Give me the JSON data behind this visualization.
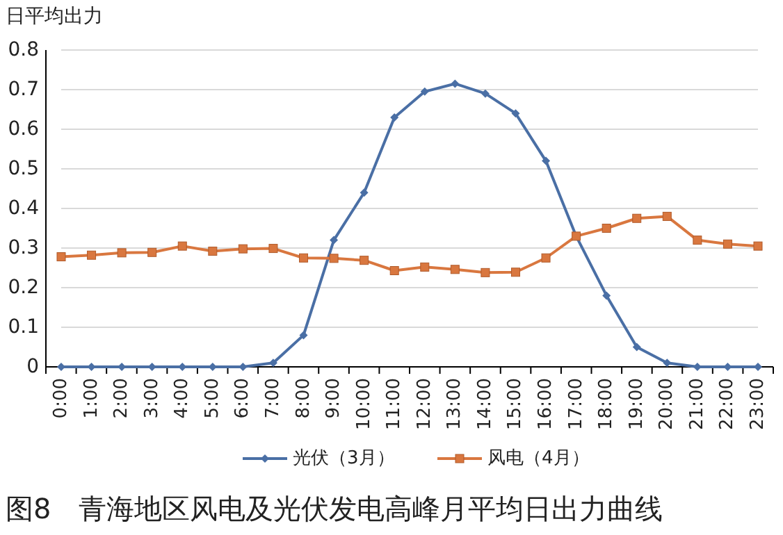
{
  "chart_data": {
    "type": "line",
    "title": "图8　青海地区风电及光伏发电高峰月平均日出力曲线",
    "ylabel": "日平均出力",
    "categories": [
      "0:00",
      "1:00",
      "2:00",
      "3:00",
      "4:00",
      "5:00",
      "6:00",
      "7:00",
      "8:00",
      "9:00",
      "10:00",
      "11:00",
      "12:00",
      "13:00",
      "14:00",
      "15:00",
      "16:00",
      "17:00",
      "18:00",
      "19:00",
      "20:00",
      "21:00",
      "22:00",
      "23:00"
    ],
    "series": [
      {
        "name": "光伏（3月）",
        "color": "#4a6fa5",
        "marker": "diamond",
        "values": [
          0,
          0,
          0,
          0,
          0,
          0,
          0,
          0.01,
          0.08,
          0.32,
          0.44,
          0.63,
          0.695,
          0.715,
          0.69,
          0.64,
          0.52,
          0.33,
          0.18,
          0.05,
          0.01,
          0,
          0,
          0
        ]
      },
      {
        "name": "风电（4月）",
        "color": "#d9773f",
        "marker": "square",
        "values": [
          0.278,
          0.282,
          0.288,
          0.289,
          0.305,
          0.292,
          0.298,
          0.299,
          0.275,
          0.274,
          0.269,
          0.243,
          0.252,
          0.246,
          0.238,
          0.239,
          0.275,
          0.33,
          0.35,
          0.375,
          0.38,
          0.32,
          0.31,
          0.305
        ]
      }
    ],
    "ylim": [
      0,
      0.8
    ],
    "yticks": [
      0,
      0.1,
      0.2,
      0.3,
      0.4,
      0.5,
      0.6,
      0.7,
      0.8
    ],
    "grid": "y",
    "legend": "bottom"
  }
}
